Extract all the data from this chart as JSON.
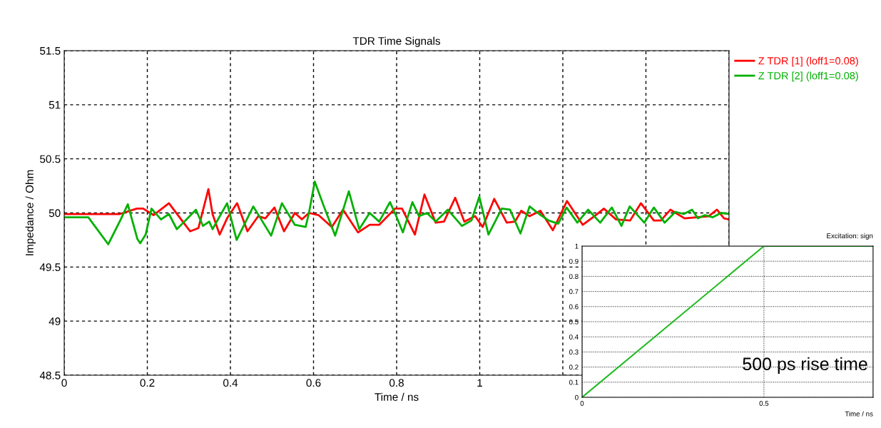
{
  "chart_data": [
    {
      "type": "line",
      "title": "TDR Time Signals",
      "xlabel": "Time / ns",
      "ylabel": "Impedance / Ohm",
      "xlim": [
        0,
        1.6
      ],
      "ylim": [
        48.5,
        51.5
      ],
      "xticks": [
        0,
        0.2,
        0.4,
        0.6,
        0.8,
        1,
        {
          "value": 1.2,
          "label": null
        },
        {
          "value": 1.4,
          "label": null
        },
        {
          "value": 1.6,
          "label": null
        }
      ],
      "yticks": [
        48.5,
        49,
        49.5,
        50,
        50.5,
        51,
        51.5
      ],
      "grid": true,
      "legend": "top right",
      "line_style": "solid",
      "series": [
        {
          "name": "Z TDR [1] (loff1=0.08)",
          "color": "#ff0000",
          "x": [
            0,
            0.134,
            0.175,
            0.19,
            0.215,
            0.252,
            0.303,
            0.323,
            0.347,
            0.357,
            0.374,
            0.392,
            0.416,
            0.441,
            0.467,
            0.484,
            0.506,
            0.529,
            0.555,
            0.572,
            0.589,
            0.612,
            0.644,
            0.671,
            0.707,
            0.735,
            0.758,
            0.781,
            0.796,
            0.813,
            0.844,
            0.867,
            0.894,
            0.914,
            0.941,
            0.963,
            0.989,
            1.007,
            1.035,
            1.065,
            1.085,
            1.1,
            1.12,
            1.146,
            1.176,
            1.21,
            1.248,
            1.276,
            1.299,
            1.328,
            1.362,
            1.388,
            1.419,
            1.436,
            1.459,
            1.493,
            1.522,
            1.551,
            1.571,
            1.588,
            1.6
          ],
          "values": [
            49.99,
            49.99,
            50.04,
            50.04,
            49.98,
            50.09,
            49.83,
            49.86,
            50.22,
            49.99,
            49.8,
            49.95,
            50.09,
            49.83,
            49.97,
            49.95,
            50.05,
            49.83,
            50.0,
            49.94,
            50.0,
            49.98,
            49.87,
            50.03,
            49.82,
            49.89,
            49.89,
            49.98,
            50.04,
            50.04,
            49.8,
            50.17,
            49.91,
            49.92,
            50.14,
            49.92,
            49.97,
            49.87,
            50.13,
            49.91,
            49.92,
            50.02,
            49.97,
            50.02,
            49.84,
            50.11,
            49.89,
            49.97,
            50.04,
            49.94,
            49.93,
            50.09,
            49.93,
            49.93,
            50.03,
            49.95,
            49.96,
            49.97,
            50.03,
            49.95,
            49.94
          ]
        },
        {
          "name": "Z TDR [2] (loff1=0.08)",
          "color": "#00b000",
          "x": [
            0,
            0.058,
            0.106,
            0.136,
            0.153,
            0.176,
            0.183,
            0.196,
            0.21,
            0.233,
            0.252,
            0.271,
            0.297,
            0.317,
            0.334,
            0.349,
            0.357,
            0.392,
            0.415,
            0.455,
            0.498,
            0.524,
            0.555,
            0.581,
            0.589,
            0.603,
            0.624,
            0.652,
            0.685,
            0.71,
            0.735,
            0.758,
            0.784,
            0.798,
            0.815,
            0.838,
            0.854,
            0.873,
            0.894,
            0.923,
            0.957,
            0.98,
            0.999,
            1.021,
            1.053,
            1.073,
            1.098,
            1.12,
            1.143,
            1.166,
            1.189,
            1.209,
            1.235,
            1.261,
            1.29,
            1.318,
            1.341,
            1.361,
            1.396,
            1.419,
            1.445,
            1.471,
            1.491,
            1.511,
            1.525,
            1.542,
            1.561,
            1.581,
            1.6
          ],
          "values": [
            49.96,
            49.96,
            49.71,
            49.94,
            50.08,
            49.76,
            49.72,
            49.8,
            50.04,
            49.94,
            49.99,
            49.85,
            49.95,
            50.03,
            49.88,
            49.92,
            49.85,
            50.09,
            49.75,
            50.06,
            49.79,
            50.09,
            49.89,
            49.87,
            50.0,
            50.29,
            50.07,
            49.79,
            50.2,
            49.85,
            50.0,
            49.92,
            50.1,
            49.98,
            49.82,
            50.1,
            49.97,
            50.0,
            49.92,
            50.03,
            49.88,
            49.93,
            50.15,
            49.8,
            50.04,
            50.03,
            49.81,
            50.06,
            49.99,
            49.93,
            49.9,
            50.05,
            49.91,
            50.03,
            49.91,
            50.05,
            49.88,
            50.06,
            49.91,
            50.05,
            49.91,
            50.01,
            49.99,
            50.03,
            49.95,
            49.98,
            49.96,
            50.0,
            49.99
          ]
        }
      ]
    },
    {
      "type": "line",
      "title": "Excitation: sign",
      "xlabel": "Time / ns",
      "xlim": [
        0,
        0.8
      ],
      "ylim": [
        0,
        1
      ],
      "xticks": [
        0,
        0.5
      ],
      "yticks": [
        0,
        0.1,
        0.2,
        0.3,
        0.4,
        0.5,
        0.6,
        0.7,
        0.8,
        0.9,
        1
      ],
      "grid": true,
      "line_style": "solid",
      "annotations": [
        "500 ps rise time"
      ],
      "series": [
        {
          "color": "#22bb22",
          "x": [
            0,
            0.5,
            0.8
          ],
          "values": [
            0,
            1,
            1
          ]
        }
      ]
    }
  ]
}
